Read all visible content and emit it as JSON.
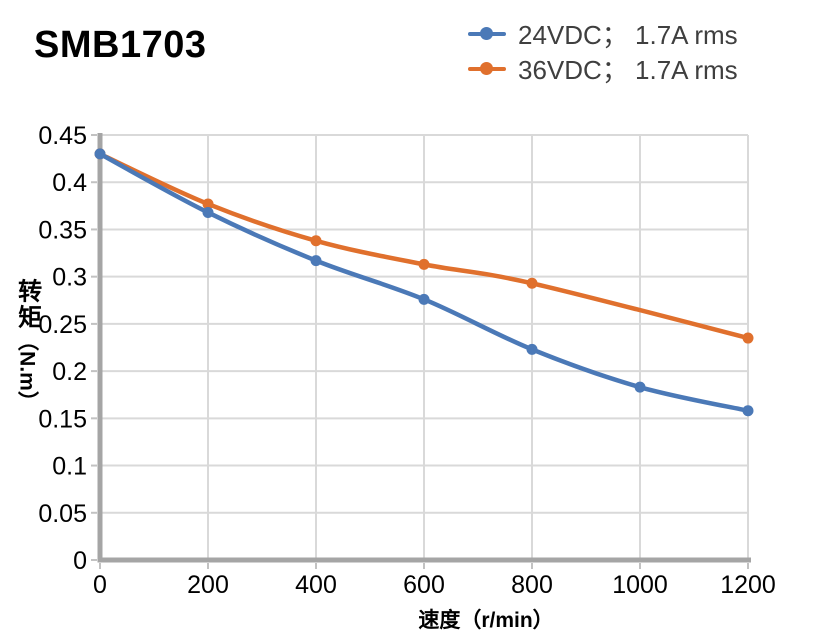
{
  "title": "SMB1703",
  "chart_data": {
    "type": "line",
    "title": "SMB1703",
    "xlabel": "速度（r/min）",
    "ylabel": "转矩（N.m）",
    "ylabel_parts": [
      "转矩",
      "（N.m）"
    ],
    "xlim": [
      0,
      1200
    ],
    "ylim": [
      0,
      0.45
    ],
    "x_ticks": [
      0,
      200,
      400,
      600,
      800,
      1000,
      1200
    ],
    "y_ticks": [
      0,
      0.05,
      0.1,
      0.15,
      0.2,
      0.25,
      0.3,
      0.35,
      0.4,
      0.45
    ],
    "y_tick_labels": [
      "0",
      "0.05",
      "0.1",
      "0.15",
      "0.2",
      "0.25",
      "0.3",
      "0.35",
      "0.4",
      "0.45"
    ],
    "grid": true,
    "legend_position": "top-right",
    "series": [
      {
        "name": "24VDC； 1.7A rms",
        "color": "#4b79b7",
        "x": [
          0,
          200,
          400,
          600,
          800,
          1000,
          1200
        ],
        "y": [
          0.43,
          0.368,
          0.317,
          0.276,
          0.223,
          0.183,
          0.158
        ]
      },
      {
        "name": "36VDC； 1.7A rms",
        "color": "#e0702d",
        "x": [
          0,
          200,
          400,
          600,
          800,
          1200
        ],
        "y": [
          0.43,
          0.377,
          0.338,
          0.313,
          0.293,
          0.235
        ]
      }
    ]
  },
  "colors": {
    "background": "#ffffff",
    "axis": "#a5a5a5",
    "grid": "#d9d9d9",
    "tick": "#c2c2c2",
    "tick_text": "#000000",
    "legend_text": "#3f3f3f",
    "series_blue": "#4b79b7",
    "series_orange": "#e0702d"
  }
}
